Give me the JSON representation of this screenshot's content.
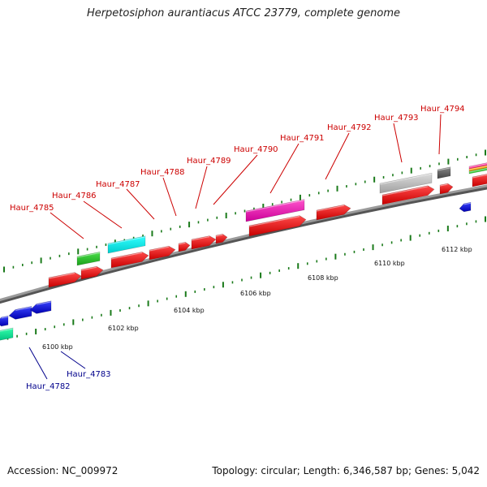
{
  "title": "Herpetosiphon aurantiacus ATCC 23779, complete genome",
  "footer": {
    "accession": "Accession: NC_009972",
    "info": "Topology: circular; Length: 6,346,587 bp; Genes: 5,042"
  },
  "colors": {
    "backbone": "#8a8a8a",
    "forward_gene": "#e8141a",
    "reverse_gene": "#1a22e0",
    "tick": "#1a7a1a",
    "label_red": "#cc0000",
    "label_blue": "#00008b"
  },
  "scale_labels": [
    "6100 kbp",
    "6102 kbp",
    "6104 kbp",
    "6106 kbp",
    "6108 kbp",
    "6110 kbp",
    "6112 kbp"
  ],
  "forward_labels": [
    "Haur_4785",
    "Haur_4786",
    "Haur_4787",
    "Haur_4788",
    "Haur_4789",
    "Haur_4790",
    "Haur_4791",
    "Haur_4792",
    "Haur_4793",
    "Haur_4794"
  ],
  "reverse_labels": [
    "Haur_4782",
    "Haur_4783"
  ]
}
